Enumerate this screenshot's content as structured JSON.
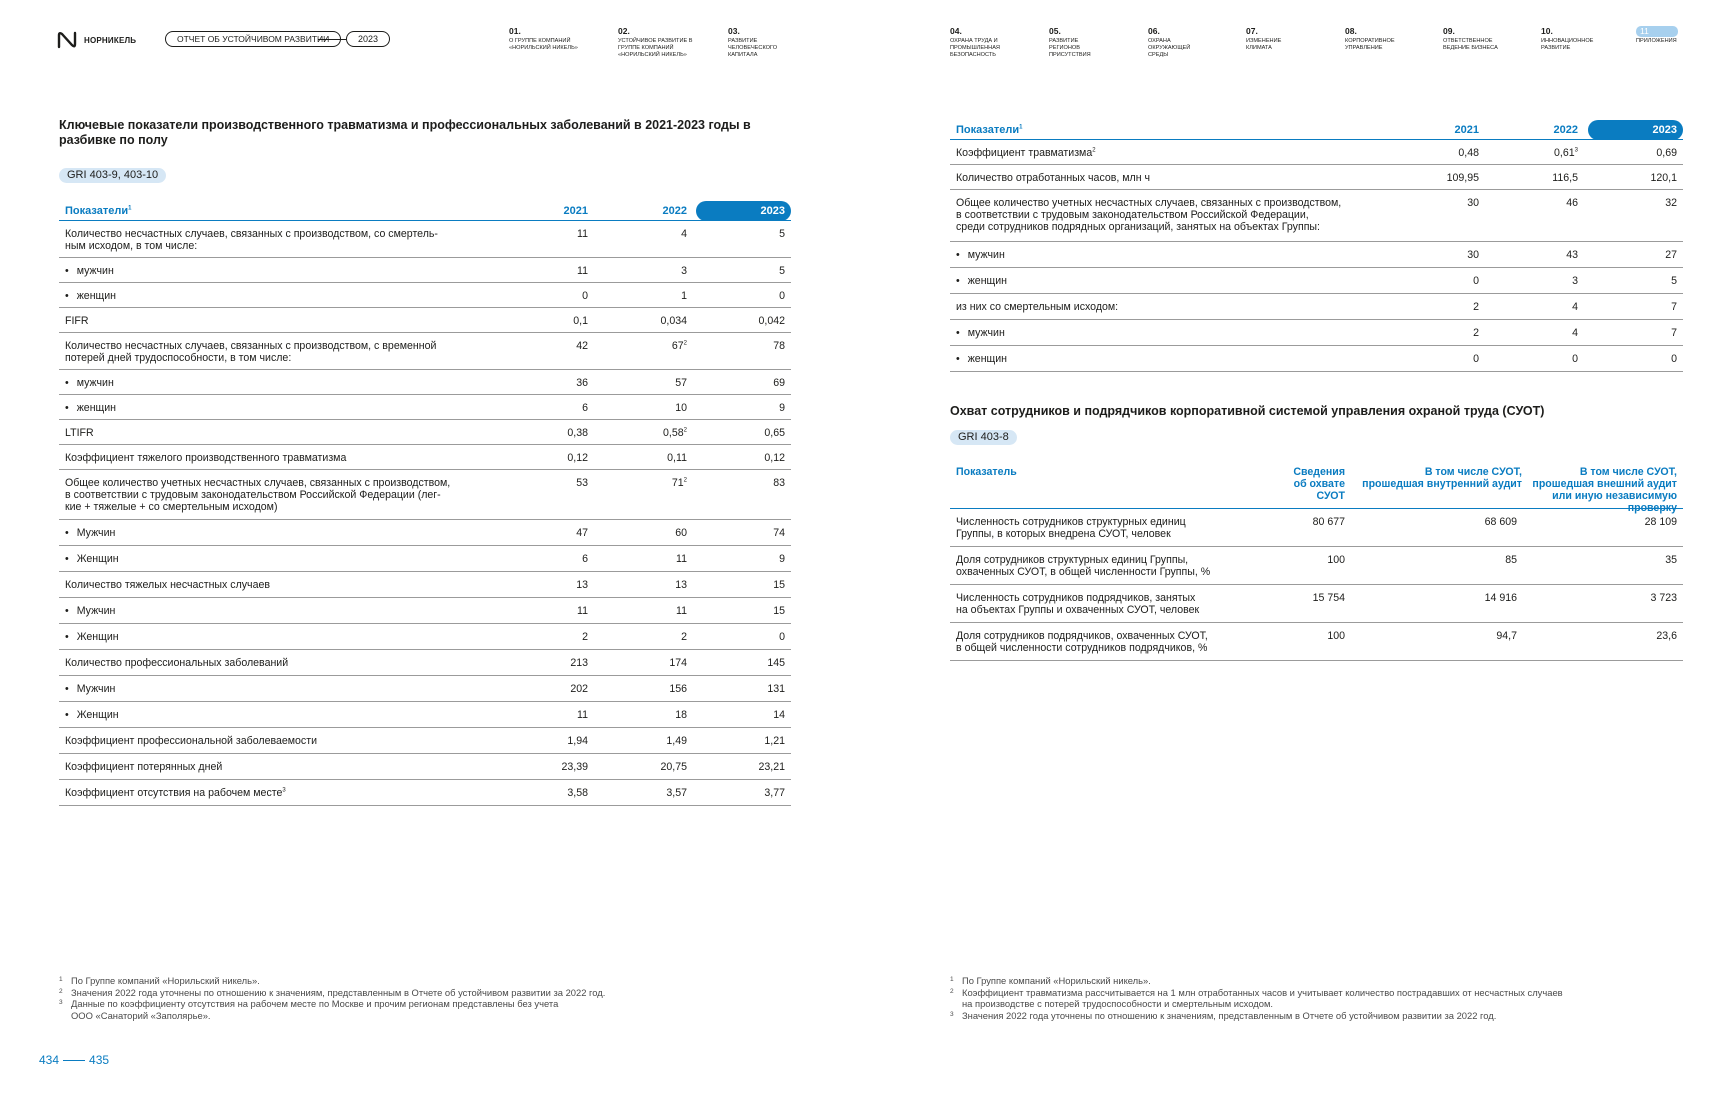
{
  "header": {
    "logo_text": "НОРНИКЕЛЬ",
    "report_title": "ОТЧЕТ ОБ УСТОЙЧИВОМ РАЗВИТИИ",
    "year": "2023",
    "nav": [
      {
        "num": "01.",
        "label": "О группе компаний «Норильский никель»"
      },
      {
        "num": "02.",
        "label": "Устойчивое развитие в группе компаний «Норильский никель»"
      },
      {
        "num": "03.",
        "label": "Развитие человеческого капитала"
      },
      {
        "num": "04.",
        "label": "Охрана труда и промышленная безопасность"
      },
      {
        "num": "05.",
        "label": "Развитие регионов присутствия"
      },
      {
        "num": "06.",
        "label": "Охрана окружающей среды"
      },
      {
        "num": "07.",
        "label": "Изменение климата"
      },
      {
        "num": "08.",
        "label": "Корпоративное управление"
      },
      {
        "num": "09.",
        "label": "Ответственное ведение бизнеса"
      },
      {
        "num": "10.",
        "label": "Инновационное развитие"
      },
      {
        "num": "11",
        "label": "Приложения"
      }
    ]
  },
  "left": {
    "title": "Ключевые показатели производственного травматизма и профессиональных заболеваний в 2021-2023 годы в разбивке по полу",
    "gri": "GRI 403-9, 403-10",
    "table": {
      "header": {
        "label": "Показатели",
        "sup": "1",
        "y2021": "2021",
        "y2022": "2022",
        "y2023": "2023"
      },
      "rows": [
        {
          "label": "Количество несчастных случаев, связанных с производством, со смертель-\nным исходом, в том числе:",
          "bullet": false,
          "v2021": "11",
          "v2022": "4",
          "v2022_sup": "",
          "v2023": "5",
          "h": 37
        },
        {
          "label": "мужчин",
          "bullet": true,
          "v2021": "11",
          "v2022": "3",
          "v2022_sup": "",
          "v2023": "5",
          "h": 25
        },
        {
          "label": "женщин",
          "bullet": true,
          "v2021": "0",
          "v2022": "1",
          "v2022_sup": "",
          "v2023": "0",
          "h": 25
        },
        {
          "label": "FIFR",
          "bullet": false,
          "v2021": "0,1",
          "v2022": "0,034",
          "v2022_sup": "",
          "v2023": "0,042",
          "h": 25
        },
        {
          "label": "Количество несчастных случаев, связанных с производством, с временной\nпотерей дней трудоспособности, в том числе:",
          "bullet": false,
          "v2021": "42",
          "v2022": "67",
          "v2022_sup": "2",
          "v2023": "78",
          "h": 37
        },
        {
          "label": "мужчин",
          "bullet": true,
          "v2021": "36",
          "v2022": "57",
          "v2022_sup": "",
          "v2023": "69",
          "h": 25
        },
        {
          "label": "женщин",
          "bullet": true,
          "v2021": "6",
          "v2022": "10",
          "v2022_sup": "",
          "v2023": "9",
          "h": 25
        },
        {
          "label": "LTIFR",
          "bullet": false,
          "v2021": "0,38",
          "v2022": "0,58",
          "v2022_sup": "2",
          "v2023": "0,65",
          "h": 25
        },
        {
          "label": "Коэффициент тяжелого производственного травматизма",
          "bullet": false,
          "v2021": "0,12",
          "v2022": "0,11",
          "v2022_sup": "",
          "v2023": "0,12",
          "h": 25
        },
        {
          "label": "Общее количество учетных несчастных случаев, связанных с производством,\nв соответствии с трудовым законодательством Российской Федерации (лег-\nкие + тяжелые + со смертельным исходом)",
          "bullet": false,
          "v2021": "53",
          "v2022": "71",
          "v2022_sup": "2",
          "v2023": "83",
          "h": 50
        },
        {
          "label": "Мужчин",
          "bullet": true,
          "v2021": "47",
          "v2022": "60",
          "v2022_sup": "",
          "v2023": "74",
          "h": 26
        },
        {
          "label": "Женщин",
          "bullet": true,
          "v2021": "6",
          "v2022": "11",
          "v2022_sup": "",
          "v2023": "9",
          "h": 26
        },
        {
          "label": "Количество тяжелых несчастных случаев",
          "bullet": false,
          "v2021": "13",
          "v2022": "13",
          "v2022_sup": "",
          "v2023": "15",
          "h": 26
        },
        {
          "label": "Мужчин",
          "bullet": true,
          "v2021": "11",
          "v2022": "11",
          "v2022_sup": "",
          "v2023": "15",
          "h": 26
        },
        {
          "label": "Женщин",
          "bullet": true,
          "v2021": "2",
          "v2022": "2",
          "v2022_sup": "",
          "v2023": "0",
          "h": 26
        },
        {
          "label": "Количество профессиональных заболеваний",
          "bullet": false,
          "v2021": "213",
          "v2022": "174",
          "v2022_sup": "",
          "v2023": "145",
          "h": 26
        },
        {
          "label": "Мужчин",
          "bullet": true,
          "v2021": "202",
          "v2022": "156",
          "v2022_sup": "",
          "v2023": "131",
          "h": 26
        },
        {
          "label": "Женщин",
          "bullet": true,
          "v2021": "11",
          "v2022": "18",
          "v2022_sup": "",
          "v2023": "14",
          "h": 26
        },
        {
          "label": "Коэффициент профессиональной заболеваемости",
          "bullet": false,
          "v2021": "1,94",
          "v2022": "1,49",
          "v2022_sup": "",
          "v2023": "1,21",
          "h": 26
        },
        {
          "label": "Коэффициент потерянных дней",
          "bullet": false,
          "v2021": "23,39",
          "v2022": "20,75",
          "v2022_sup": "",
          "v2023": "23,21",
          "h": 26
        },
        {
          "label": "Коэффициент отсутствия на рабочем месте",
          "label_sup": "3",
          "bullet": false,
          "v2021": "3,58",
          "v2022": "3,57",
          "v2022_sup": "",
          "v2023": "3,77",
          "h": 26
        }
      ]
    },
    "footnotes": [
      {
        "num": "1",
        "text": "По Группе компаний «Норильский никель»."
      },
      {
        "num": "2",
        "text": "Значения 2022 года уточнены по отношению к значениям, представленным в Отчете об устойчивом развитии за 2022 год."
      },
      {
        "num": "3",
        "text": "Данные по коэффициенту отсутствия на рабочем месте по Москве и прочим регионам представлены без учета\nООО «Санаторий «Заполярье»."
      }
    ]
  },
  "right": {
    "table1": {
      "header": {
        "label": "Показатели",
        "sup": "1",
        "y2021": "2021",
        "y2022": "2022",
        "y2023": "2023"
      },
      "rows": [
        {
          "label": "Коэффициент травматизма",
          "label_sup": "2",
          "bullet": false,
          "v2021": "0,48",
          "v2022": "0,61",
          "v2022_sup": "3",
          "v2023": "0,69",
          "h": 25
        },
        {
          "label": "Количество отработанных часов, млн ч",
          "bullet": false,
          "v2021": "109,95",
          "v2022": "116,5",
          "v2022_sup": "",
          "v2023": "120,1",
          "h": 25
        },
        {
          "label": "Общее количество учетных несчастных случаев, связанных с производством,\nв соответствии с трудовым законодательством Российской Федерации,\nсреди сотрудников подрядных организаций, занятых на объектах Группы:",
          "bullet": false,
          "v2021": "30",
          "v2022": "46",
          "v2022_sup": "",
          "v2023": "32",
          "h": 52
        },
        {
          "label": "мужчин",
          "bullet": true,
          "v2021": "30",
          "v2022": "43",
          "v2022_sup": "",
          "v2023": "27",
          "h": 26
        },
        {
          "label": "женщин",
          "bullet": true,
          "v2021": "0",
          "v2022": "3",
          "v2022_sup": "",
          "v2023": "5",
          "h": 26
        },
        {
          "label": "из них со смертельным исходом:",
          "bullet": false,
          "v2021": "2",
          "v2022": "4",
          "v2022_sup": "",
          "v2023": "7",
          "h": 26
        },
        {
          "label": "мужчин",
          "bullet": true,
          "v2021": "2",
          "v2022": "4",
          "v2022_sup": "",
          "v2023": "7",
          "h": 26
        },
        {
          "label": "женщин",
          "bullet": true,
          "v2021": "0",
          "v2022": "0",
          "v2022_sup": "",
          "v2023": "0",
          "h": 26
        }
      ]
    },
    "title2": "Охват сотрудников и подрядчиков корпоративной системой управления охраной труда (СУОТ)",
    "gri2": "GRI 403-8",
    "table2": {
      "header": {
        "label": "Показатель",
        "c1": "Сведения\nоб охвате\nСУОТ",
        "c2": "В том числе СУОТ,\nпрошедшая внутренний аудит",
        "c3": "В том числе СУОТ,\nпрошедшая внешний аудит\nили иную независимую проверку"
      },
      "rows": [
        {
          "label": "Численность сотрудников структурных единиц\nГруппы, в которых внедрена СУОТ, человек",
          "c1": "80 677",
          "c2": "68 609",
          "c3": "28 109"
        },
        {
          "label": "Доля сотрудников структурных единиц Группы,\nохваченных СУОТ, в общей численности Группы, %",
          "c1": "100",
          "c2": "85",
          "c3": "35"
        },
        {
          "label": "Численность сотрудников подрядчиков, занятых\nна объектах Группы и охваченных СУОТ, человек",
          "c1": "15 754",
          "c2": "14 916",
          "c3": "3 723"
        },
        {
          "label": "Доля сотрудников подрядчиков, охваченных СУОТ,\nв общей численности сотрудников подрядчиков, %",
          "c1": "100",
          "c2": "94,7",
          "c3": "23,6"
        }
      ]
    },
    "footnotes": [
      {
        "num": "1",
        "text": "По Группе компаний «Норильский никель»."
      },
      {
        "num": "2",
        "text": "Коэффициент травматизма рассчитывается на 1 млн отработанных часов и учитывает количество пострадавших от несчастных случаев\nна производстве с потерей трудоспособности и смертельным исходом."
      },
      {
        "num": "3",
        "text": "Значения 2022 года уточнены по отношению к значениям, представленным в Отчете об устойчивом развитии за 2022 год."
      }
    ]
  },
  "pages": {
    "left": "434",
    "right": "435"
  },
  "colors": {
    "accent": "#0a7cc1",
    "accent_light": "#d6e7f5",
    "nav_active": "#a7d0ee"
  }
}
